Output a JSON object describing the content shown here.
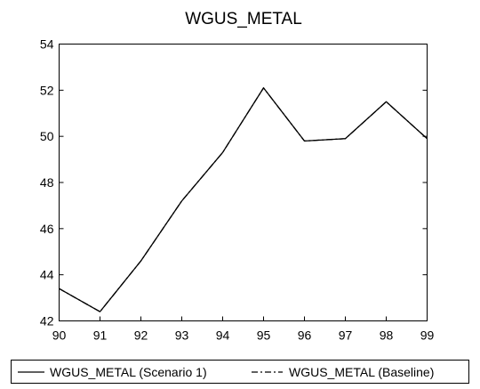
{
  "chart_data": {
    "type": "line",
    "title": "WGUS_METAL",
    "xlabel": "",
    "ylabel": "",
    "x": [
      "90",
      "91",
      "92",
      "93",
      "94",
      "95",
      "96",
      "97",
      "98",
      "99"
    ],
    "xlim": [
      90,
      99
    ],
    "ylim": [
      42,
      54
    ],
    "yticks": [
      "42",
      "44",
      "46",
      "48",
      "50",
      "52",
      "54"
    ],
    "grid": false,
    "legend_position": "bottom",
    "series": [
      {
        "name": "WGUS_METAL (Scenario 1)",
        "line_style": "solid",
        "color": "#000000",
        "values": [
          43.4,
          42.4,
          44.6,
          47.2,
          49.3,
          52.1,
          49.8,
          49.9,
          51.5,
          49.9
        ]
      },
      {
        "name": "WGUS_METAL (Baseline)",
        "line_style": "dashed",
        "color": "#000000",
        "values": [
          43.4,
          42.4,
          44.6,
          47.2,
          49.3,
          52.1,
          49.8,
          49.9,
          51.5,
          49.9
        ]
      }
    ]
  }
}
